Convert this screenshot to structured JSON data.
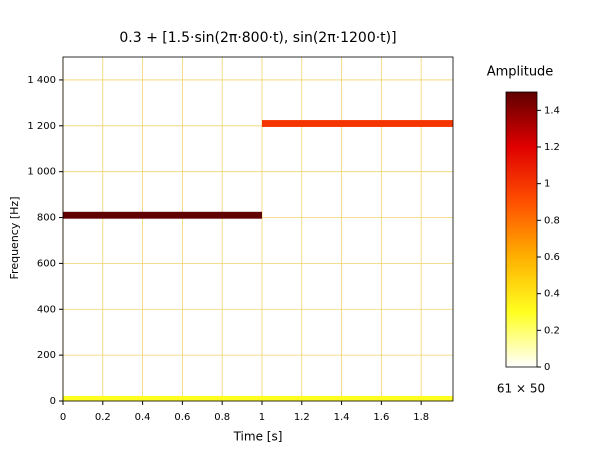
{
  "chart_data": {
    "type": "spectrogram",
    "title": "0.3 + [1.5·sin(2π·800·t), sin(2π·1200·t)]",
    "xlabel": "Time [s]",
    "ylabel": "Frequency [Hz]",
    "xlim": [
      0,
      1.96
    ],
    "ylim": [
      0,
      1500
    ],
    "xticks": [
      0,
      0.2,
      0.4,
      0.6,
      0.8,
      1,
      1.2,
      1.4,
      1.6,
      1.8
    ],
    "yticks": [
      0,
      200,
      400,
      600,
      800,
      {
        "value": 1000,
        "label": "1 000"
      },
      {
        "value": 1200,
        "label": "1 200"
      },
      {
        "value": 1400,
        "label": "1 400"
      }
    ],
    "grid": true,
    "grid_color": "#f2d36b",
    "segments": [
      {
        "t_start": 0,
        "t_end": 1.96,
        "f_low": 0,
        "f_high": 22,
        "amplitude": 0.3
      },
      {
        "t_start": 0,
        "t_end": 1,
        "f_low": 795,
        "f_high": 825,
        "amplitude": 1.5
      },
      {
        "t_start": 1,
        "t_end": 1.96,
        "f_low": 1195,
        "f_high": 1225,
        "amplitude": 1
      }
    ],
    "colorbar": {
      "title": "Amplitude",
      "clim": [
        0,
        1.5
      ],
      "ticks": [
        0,
        0.2,
        0.4,
        0.6,
        0.8,
        1,
        1.2,
        1.4
      ],
      "colormap": [
        "#ffffff",
        "#ffff20",
        "#ffb000",
        "#ff5000",
        "#e00000",
        "#600000"
      ]
    },
    "matrix_size": "61 × 50"
  }
}
